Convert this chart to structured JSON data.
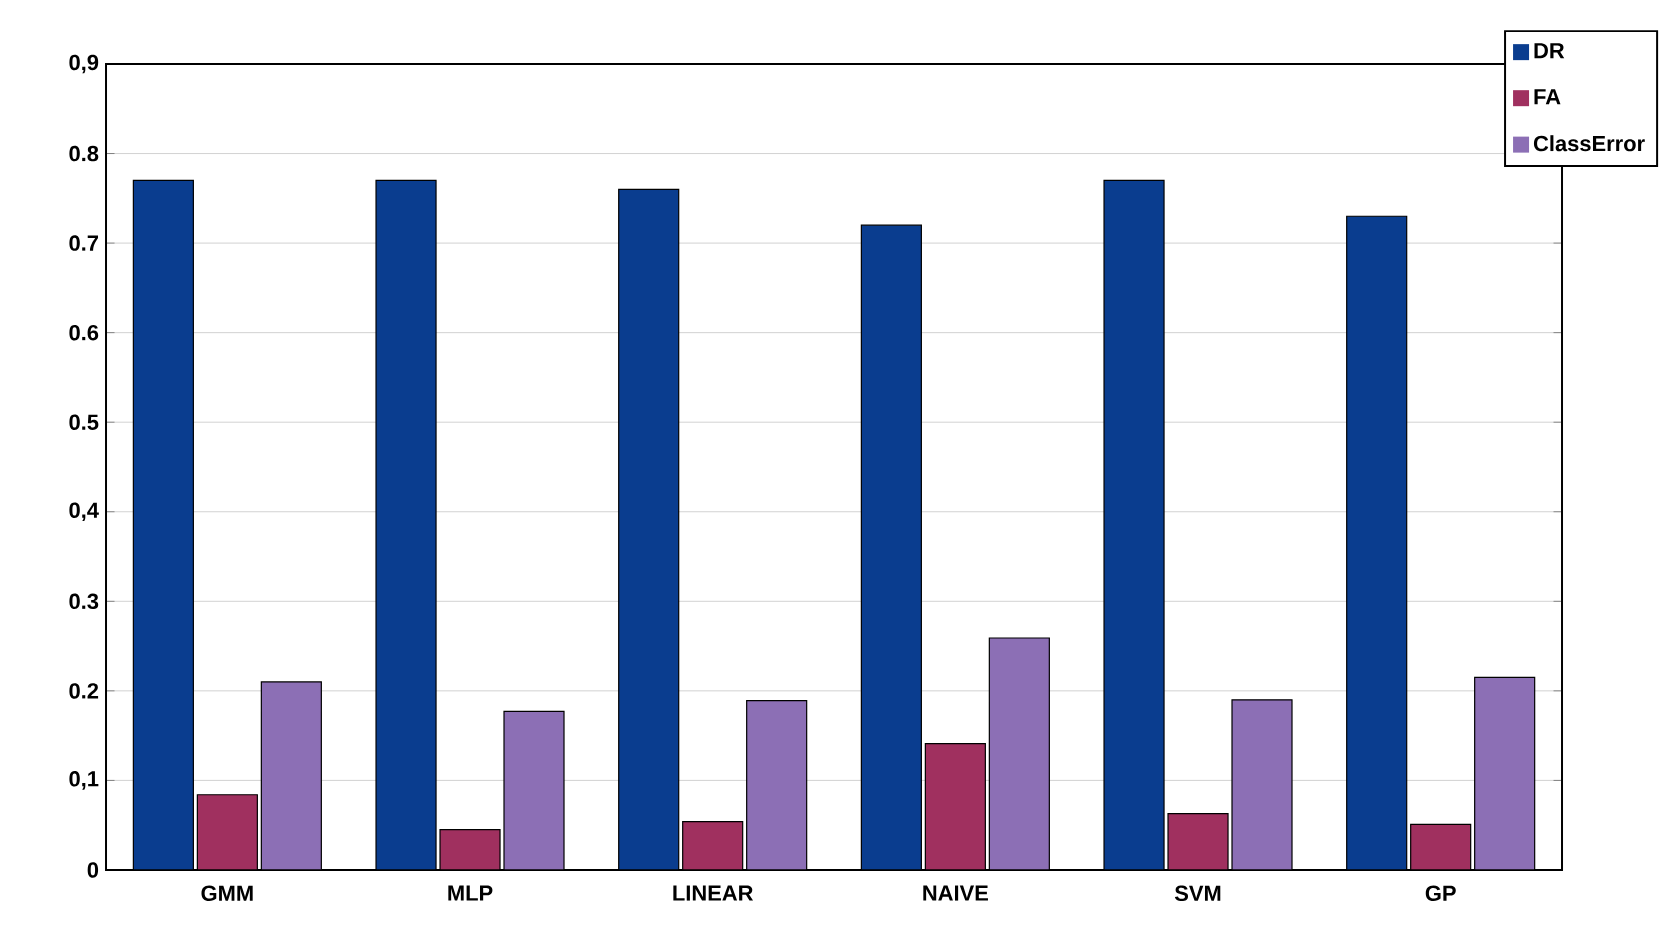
{
  "chart_data": {
    "type": "bar",
    "categories": [
      "GMM",
      "MLP",
      "LINEAR",
      "NAIVE",
      "SVM",
      "GP"
    ],
    "series": [
      {
        "name": "DR",
        "color": "#0a3d8f",
        "values": [
          0.77,
          0.77,
          0.76,
          0.72,
          0.77,
          0.73
        ]
      },
      {
        "name": "FA",
        "color": "#a0305f",
        "values": [
          0.084,
          0.045,
          0.054,
          0.141,
          0.063,
          0.051
        ]
      },
      {
        "name": "ClassError",
        "color": "#8c6fb5",
        "values": [
          0.21,
          0.177,
          0.189,
          0.259,
          0.19,
          0.215
        ]
      }
    ],
    "ylim": [
      0,
      0.9
    ],
    "yticks": [
      0,
      {
        "value": 0.1,
        "label": "0,1"
      },
      0.2,
      0.3,
      {
        "value": 0.4,
        "label": "0,4"
      },
      0.5,
      0.6,
      0.7,
      0.8,
      {
        "value": 0.9,
        "label": "0,9"
      }
    ],
    "grid": "y",
    "legend": "top right"
  }
}
